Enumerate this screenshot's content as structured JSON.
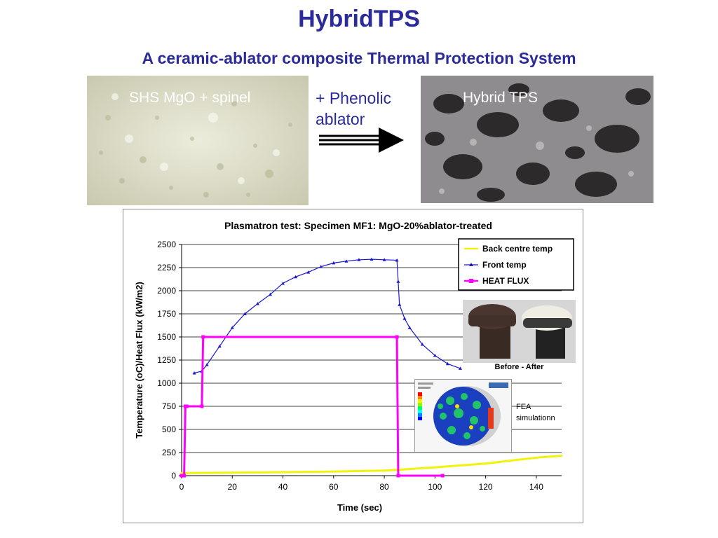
{
  "header": {
    "title": "HybridTPS",
    "subtitle": "A ceramic-ablator composite Thermal Protection System"
  },
  "photos": {
    "left_label": "SHS MgO + spinel",
    "process_label_line1": "+ Phenolic",
    "process_label_line2": "ablator",
    "right_label": "Hybrid TPS"
  },
  "insets": {
    "before_after_caption": "Before - After",
    "fea_caption_line1": "FEA",
    "fea_caption_line2": "simulationn"
  },
  "colors": {
    "title": "#2b2b9a",
    "back_temp": "#f2f20a",
    "front_temp": "#1a1ad0",
    "heat_flux": "#ff00ff"
  },
  "chart_data": {
    "type": "line",
    "title": "Plasmatron test: Specimen MF1: MgO-20%ablator-treated",
    "xlabel": "Time (sec)",
    "ylabel": "Temperature (oC)/Heat Flux (kW/m2)",
    "xlim": [
      0,
      150
    ],
    "ylim": [
      0,
      2500
    ],
    "xticks": [
      0,
      20,
      40,
      60,
      80,
      100,
      120,
      140
    ],
    "yticks": [
      0,
      250,
      500,
      750,
      1000,
      1250,
      1500,
      1750,
      2000,
      2250,
      2500
    ],
    "grid": true,
    "legend_position": "top-right",
    "series": [
      {
        "name": "Back centre temp",
        "x": [
          0,
          20,
          40,
          60,
          80,
          85,
          100,
          120,
          140,
          150
        ],
        "y": [
          28,
          32,
          38,
          45,
          55,
          62,
          90,
          130,
          195,
          215
        ]
      },
      {
        "name": "Front temp",
        "x": [
          5,
          8,
          10,
          15,
          20,
          25,
          30,
          35,
          40,
          45,
          50,
          55,
          60,
          65,
          70,
          75,
          80,
          85,
          85.5,
          86,
          88,
          90,
          95,
          100,
          105,
          110
        ],
        "y": [
          1110,
          1130,
          1200,
          1400,
          1600,
          1750,
          1860,
          1960,
          2080,
          2150,
          2200,
          2260,
          2300,
          2320,
          2335,
          2340,
          2335,
          2330,
          2100,
          1850,
          1700,
          1600,
          1420,
          1300,
          1210,
          1160
        ]
      },
      {
        "name": "HEAT FLUX",
        "x": [
          0,
          1,
          1.5,
          2,
          8,
          8.5,
          85,
          85.5,
          103
        ],
        "y": [
          0,
          0,
          750,
          750,
          750,
          1500,
          1500,
          0,
          0
        ]
      }
    ]
  }
}
